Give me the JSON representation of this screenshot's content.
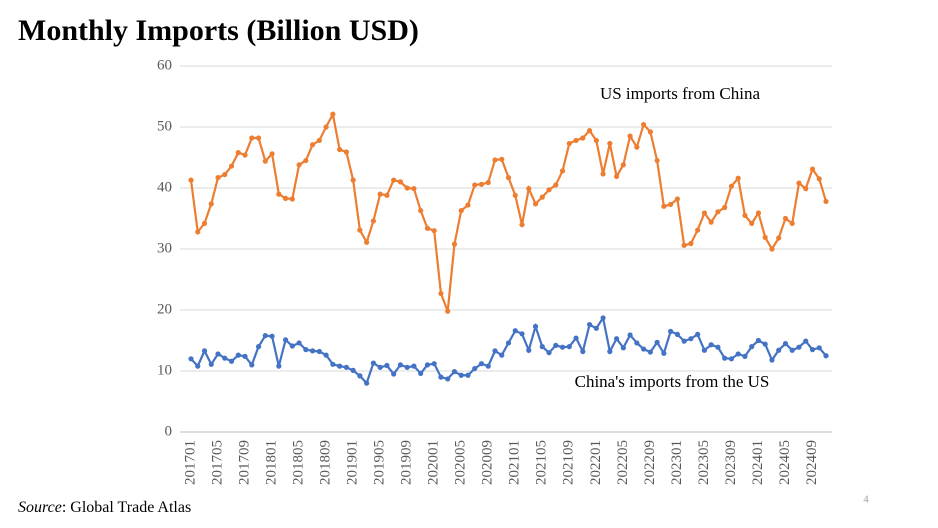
{
  "chart_data": {
    "type": "line",
    "title": "Monthly Imports (Billion USD)",
    "categories": [
      "201701",
      null,
      null,
      null,
      "201705",
      null,
      null,
      null,
      "201709",
      null,
      null,
      null,
      "201801",
      null,
      null,
      null,
      "201805",
      null,
      null,
      null,
      "201809",
      null,
      null,
      null,
      "201901",
      null,
      null,
      null,
      "201905",
      null,
      null,
      null,
      "201909",
      null,
      null,
      null,
      "202001",
      null,
      null,
      null,
      "202005",
      null,
      null,
      null,
      "202009",
      null,
      null,
      null,
      "202101",
      null,
      null,
      null,
      "202105",
      null,
      null,
      null,
      "202109",
      null,
      null,
      null,
      "202201",
      null,
      null,
      null,
      "202205",
      null,
      null,
      null,
      "202209",
      null,
      null,
      null,
      "202301",
      null,
      null,
      null,
      "202305",
      null,
      null,
      null,
      "202309",
      null,
      null,
      null,
      "202401",
      null,
      null,
      null,
      "202405",
      null,
      null,
      null,
      "202409",
      null,
      null
    ],
    "series": [
      {
        "name": "US imports from China",
        "color": "#ed7d31",
        "values": [
          41.3,
          32.8,
          34.2,
          37.4,
          41.7,
          42.2,
          43.6,
          45.8,
          45.4,
          48.2,
          48.2,
          44.4,
          45.6,
          39.0,
          38.3,
          38.2,
          43.8,
          44.5,
          47.1,
          47.8,
          50.0,
          52.1,
          46.3,
          45.9,
          41.3,
          33.1,
          31.1,
          34.6,
          39.0,
          38.8,
          41.3,
          41.0,
          40.0,
          39.9,
          36.3,
          33.4,
          33.0,
          22.7,
          19.8,
          30.8,
          36.3,
          37.2,
          40.5,
          40.6,
          40.9,
          44.6,
          44.7,
          41.7,
          38.8,
          34.0,
          39.9,
          37.4,
          38.5,
          39.7,
          40.5,
          42.8,
          47.3,
          47.8,
          48.2,
          49.4,
          47.8,
          42.3,
          47.3,
          41.9,
          43.8,
          48.5,
          46.7,
          50.4,
          49.2,
          44.5,
          37.0,
          37.3,
          38.2,
          30.6,
          30.9,
          33.1,
          35.9,
          34.4,
          36.1,
          36.8,
          40.3,
          41.6,
          35.5,
          34.2,
          35.9,
          31.9,
          30.0,
          31.8,
          35.0,
          34.2,
          40.8,
          39.9,
          43.1,
          41.5,
          37.8
        ]
      },
      {
        "name": "China's imports from the US",
        "color": "#4472c4",
        "values": [
          12.0,
          10.8,
          13.3,
          11.1,
          12.8,
          12.1,
          11.6,
          12.6,
          12.4,
          11.0,
          14.0,
          15.8,
          15.7,
          10.8,
          15.1,
          14.1,
          14.6,
          13.5,
          13.3,
          13.2,
          12.6,
          11.1,
          10.8,
          10.6,
          10.1,
          9.2,
          8.0,
          11.3,
          10.6,
          10.9,
          9.5,
          11.0,
          10.6,
          10.8,
          9.6,
          11.0,
          11.2,
          9.0,
          8.7,
          9.9,
          9.3,
          9.3,
          10.4,
          11.2,
          10.8,
          13.3,
          12.6,
          14.6,
          16.6,
          16.1,
          13.4,
          17.3,
          14.0,
          13.0,
          14.2,
          13.9,
          14.0,
          15.4,
          13.2,
          17.6,
          17.0,
          18.7,
          13.2,
          15.3,
          13.8,
          15.9,
          14.6,
          13.6,
          13.1,
          14.7,
          12.9,
          16.5,
          16.0,
          14.9,
          15.3,
          16.0,
          13.4,
          14.3,
          13.9,
          12.1,
          12.0,
          12.8,
          12.4,
          14.0,
          15.0,
          14.4,
          11.8,
          13.4,
          14.5,
          13.4,
          13.9,
          14.9,
          13.5,
          13.8,
          12.5
        ]
      }
    ],
    "ylim": [
      0,
      60
    ],
    "yticks": [
      0,
      10,
      20,
      30,
      40,
      50,
      60
    ],
    "grid": true
  },
  "source": {
    "label": "Source",
    "text": ": Global Trade Atlas"
  },
  "page_number": "4"
}
